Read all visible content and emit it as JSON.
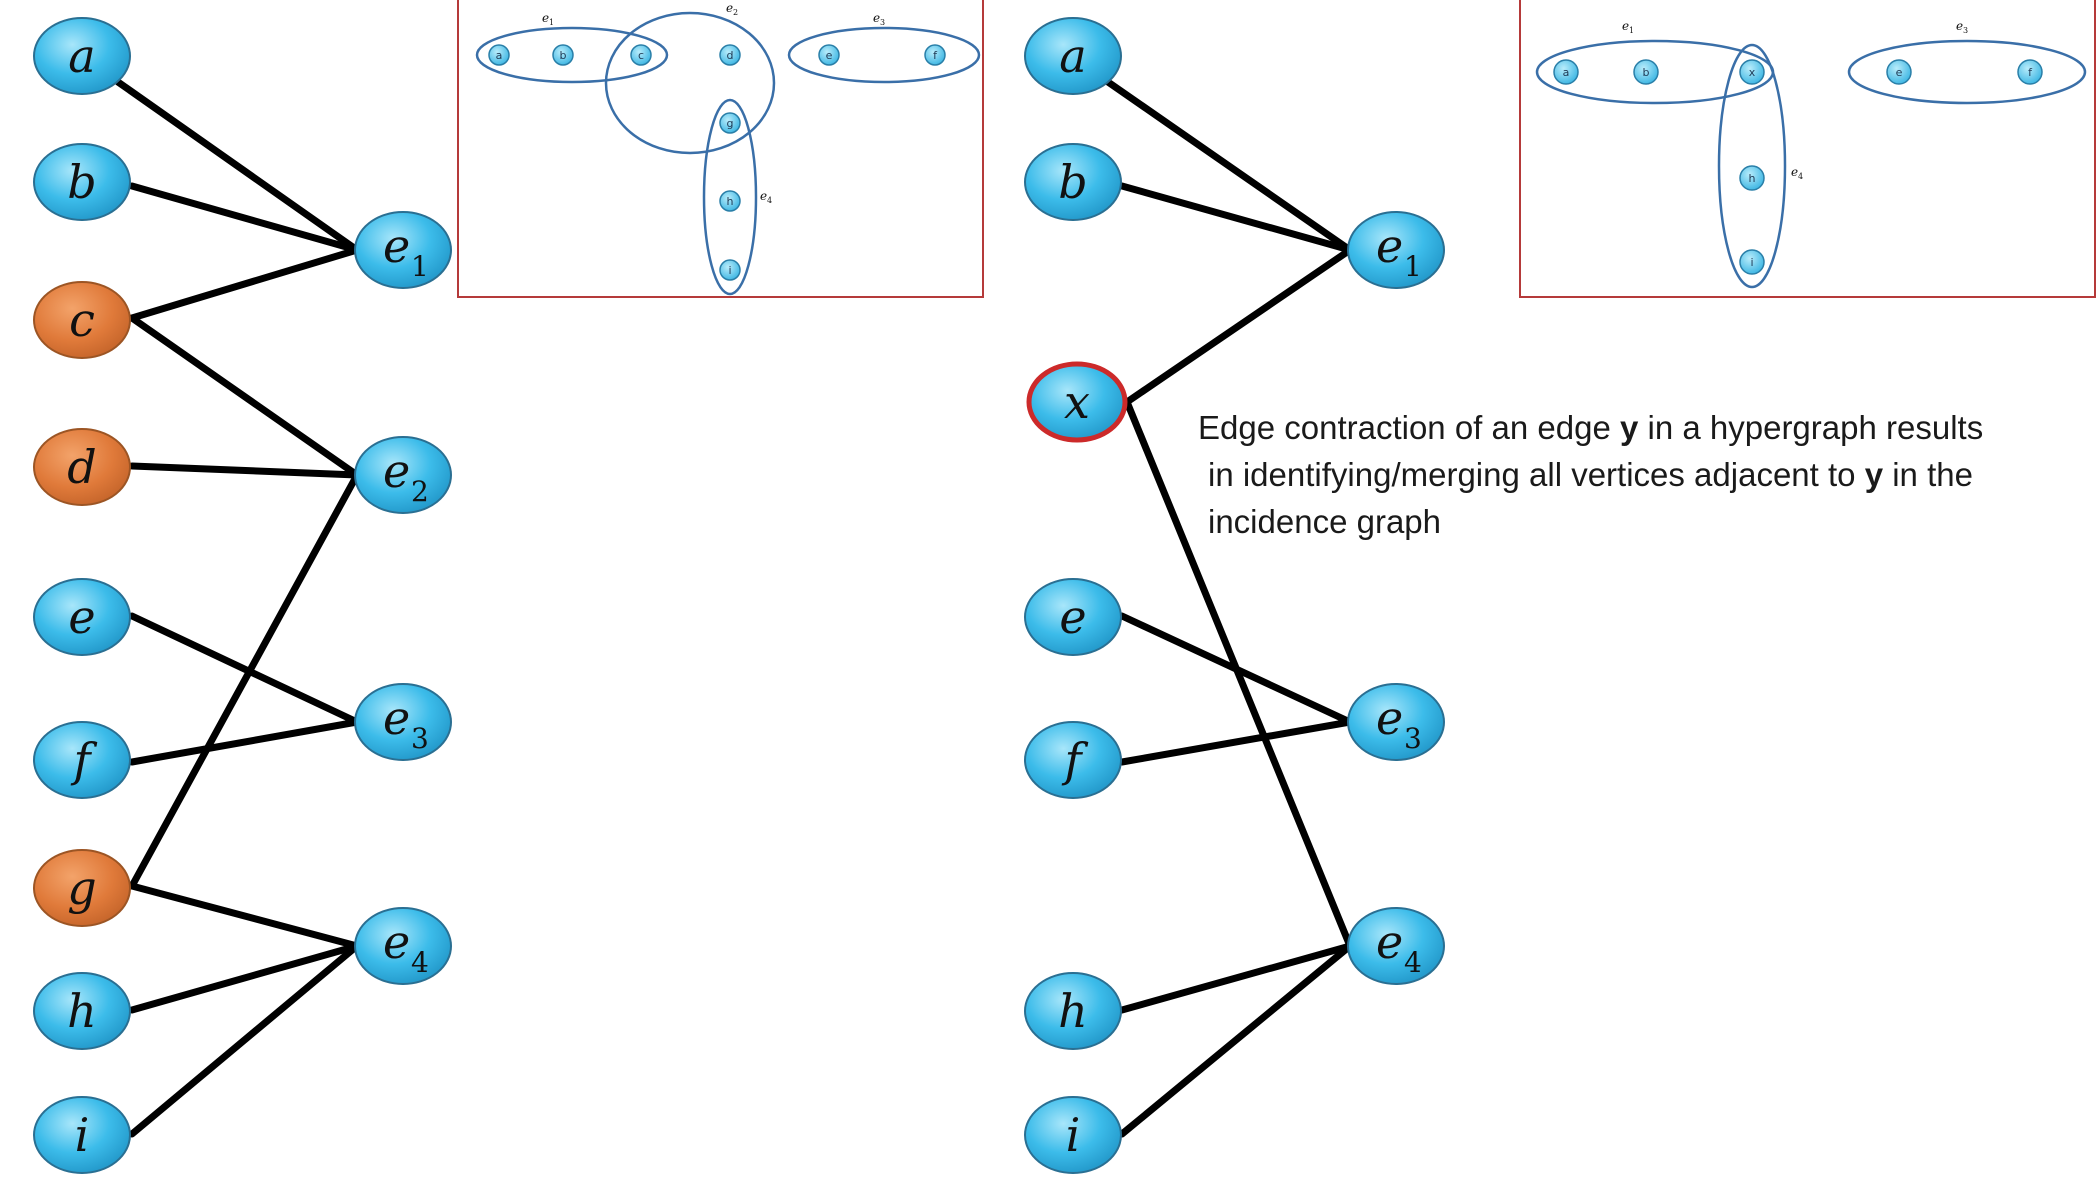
{
  "left_graph": {
    "vertices": [
      {
        "id": "a",
        "label": "a",
        "highlight": "none"
      },
      {
        "id": "b",
        "label": "b",
        "highlight": "none"
      },
      {
        "id": "c",
        "label": "c",
        "highlight": "orange"
      },
      {
        "id": "d",
        "label": "d",
        "highlight": "orange"
      },
      {
        "id": "e",
        "label": "e",
        "highlight": "none"
      },
      {
        "id": "f",
        "label": "f",
        "highlight": "none"
      },
      {
        "id": "g",
        "label": "g",
        "highlight": "orange"
      },
      {
        "id": "h",
        "label": "h",
        "highlight": "none"
      },
      {
        "id": "i",
        "label": "i",
        "highlight": "none"
      }
    ],
    "hyperedges": [
      {
        "id": "e1",
        "label": "e",
        "sub": "1"
      },
      {
        "id": "e2",
        "label": "e",
        "sub": "2"
      },
      {
        "id": "e3",
        "label": "e",
        "sub": "3"
      },
      {
        "id": "e4",
        "label": "e",
        "sub": "4"
      }
    ],
    "incidences": [
      [
        "a",
        "e1"
      ],
      [
        "b",
        "e1"
      ],
      [
        "c",
        "e1"
      ],
      [
        "c",
        "e2"
      ],
      [
        "d",
        "e2"
      ],
      [
        "g",
        "e2"
      ],
      [
        "e",
        "e3"
      ],
      [
        "f",
        "e3"
      ],
      [
        "g",
        "e4"
      ],
      [
        "h",
        "e4"
      ],
      [
        "i",
        "e4"
      ]
    ]
  },
  "right_graph": {
    "vertices": [
      {
        "id": "a",
        "label": "a",
        "highlight": "none"
      },
      {
        "id": "b",
        "label": "b",
        "highlight": "none"
      },
      {
        "id": "x",
        "label": "x",
        "highlight": "red-outline"
      },
      {
        "id": "e",
        "label": "e",
        "highlight": "none"
      },
      {
        "id": "f",
        "label": "f",
        "highlight": "none"
      },
      {
        "id": "h",
        "label": "h",
        "highlight": "none"
      },
      {
        "id": "i",
        "label": "i",
        "highlight": "none"
      }
    ],
    "hyperedges": [
      {
        "id": "e1",
        "label": "e",
        "sub": "1"
      },
      {
        "id": "e3",
        "label": "e",
        "sub": "3"
      },
      {
        "id": "e4",
        "label": "e",
        "sub": "4"
      }
    ],
    "incidences": [
      [
        "a",
        "e1"
      ],
      [
        "b",
        "e1"
      ],
      [
        "x",
        "e1"
      ],
      [
        "x",
        "e4"
      ],
      [
        "e",
        "e3"
      ],
      [
        "f",
        "e3"
      ],
      [
        "h",
        "e4"
      ],
      [
        "i",
        "e4"
      ]
    ]
  },
  "left_inset": {
    "vertex_labels": [
      "a",
      "b",
      "c",
      "d",
      "e",
      "f",
      "g",
      "h",
      "i"
    ],
    "edge_labels": [
      {
        "label": "e",
        "sub": "1"
      },
      {
        "label": "e",
        "sub": "2"
      },
      {
        "label": "e",
        "sub": "3"
      },
      {
        "label": "e",
        "sub": "4"
      }
    ]
  },
  "right_inset": {
    "vertex_labels": [
      "a",
      "b",
      "x",
      "e",
      "f",
      "h",
      "i"
    ],
    "edge_labels": [
      {
        "label": "e",
        "sub": "1"
      },
      {
        "label": "e",
        "sub": "3"
      },
      {
        "label": "e",
        "sub": "4"
      }
    ]
  },
  "caption": {
    "line1_pre": "Edge contraction of an edge ",
    "line1_bold": "y",
    "line1_post": " in a hypergraph results",
    "line2_pre": "in identifying/merging all vertices adjacent to ",
    "line2_bold": "y",
    "line2_post": " in the",
    "line3": "incidence graph"
  },
  "colors": {
    "node_fill": "#3cbcea",
    "node_fill_light": "#9be0f6",
    "node_stroke": "#2a6f92",
    "orange_fill": "#e07a3a",
    "orange_stroke": "#9c5524",
    "red_outline": "#cc2a2a",
    "edge_line": "#000000",
    "inset_border": "#b53a3a",
    "inset_ellipse": "#3a6fa8"
  }
}
